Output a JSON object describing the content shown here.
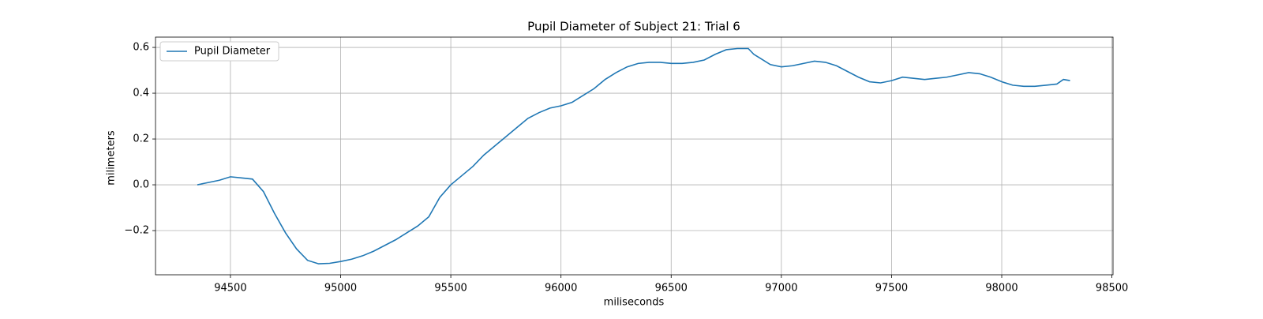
{
  "chart_data": {
    "type": "line",
    "title": "Pupil Diameter of Subject 21: Trial 6",
    "x_label": "miliseconds",
    "y_label": "milimeters",
    "x": [
      94350,
      94400,
      94450,
      94500,
      94550,
      94600,
      94650,
      94700,
      94750,
      94800,
      94850,
      94900,
      94950,
      95000,
      95050,
      95100,
      95150,
      95200,
      95250,
      95300,
      95350,
      95400,
      95450,
      95500,
      95550,
      95600,
      95650,
      95700,
      95750,
      95800,
      95850,
      95900,
      95950,
      96000,
      96050,
      96100,
      96150,
      96200,
      96250,
      96300,
      96350,
      96400,
      96450,
      96500,
      96550,
      96600,
      96650,
      96700,
      96750,
      96800,
      96850,
      96875,
      96900,
      96950,
      97000,
      97050,
      97100,
      97150,
      97200,
      97250,
      97300,
      97350,
      97400,
      97450,
      97500,
      97550,
      97600,
      97650,
      97700,
      97750,
      97800,
      97850,
      97900,
      97950,
      98000,
      98050,
      98100,
      98150,
      98200,
      98250,
      98280,
      98310
    ],
    "series": [
      {
        "name": "Pupil Diameter",
        "color": "#1f77b4",
        "values": [
          0.0,
          0.01,
          0.02,
          0.035,
          0.03,
          0.025,
          -0.03,
          -0.125,
          -0.21,
          -0.28,
          -0.33,
          -0.345,
          -0.343,
          -0.335,
          -0.325,
          -0.31,
          -0.29,
          -0.265,
          -0.24,
          -0.21,
          -0.18,
          -0.14,
          -0.055,
          0.0,
          0.04,
          0.08,
          0.13,
          0.17,
          0.21,
          0.25,
          0.29,
          0.315,
          0.335,
          0.345,
          0.36,
          0.39,
          0.42,
          0.46,
          0.49,
          0.515,
          0.53,
          0.535,
          0.535,
          0.53,
          0.53,
          0.535,
          0.545,
          0.57,
          0.59,
          0.595,
          0.595,
          0.57,
          0.555,
          0.525,
          0.515,
          0.52,
          0.53,
          0.54,
          0.535,
          0.52,
          0.495,
          0.47,
          0.45,
          0.445,
          0.455,
          0.47,
          0.465,
          0.46,
          0.465,
          0.47,
          0.48,
          0.49,
          0.485,
          0.47,
          0.45,
          0.435,
          0.43,
          0.43,
          0.435,
          0.44,
          0.46,
          0.455
        ]
      }
    ],
    "xlim": [
      94160,
      98505
    ],
    "ylim": [
      -0.393,
      0.645
    ],
    "xticks": [
      94500,
      95000,
      95500,
      96000,
      96500,
      97000,
      97500,
      98000,
      98500
    ],
    "yticks": [
      {
        "value": -0.2,
        "label": "−0.2"
      },
      {
        "value": 0,
        "label": "0.0"
      },
      0.2,
      0.4,
      0.6
    ],
    "grid": true,
    "legend": "upper left"
  }
}
